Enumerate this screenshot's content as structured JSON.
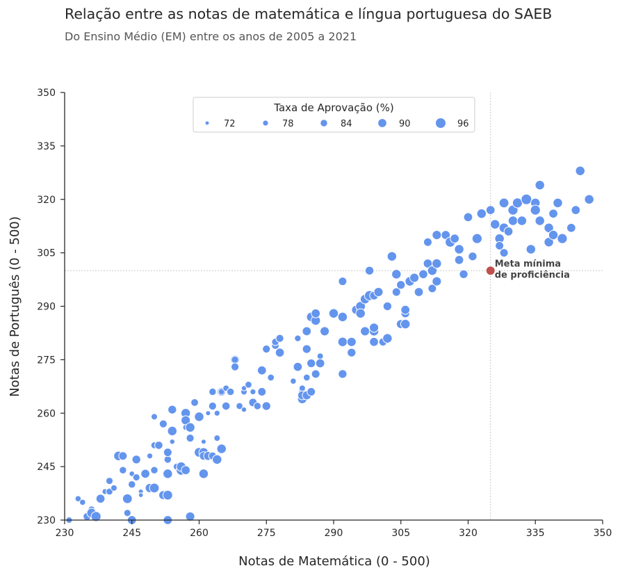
{
  "chart_data": {
    "type": "scatter",
    "title": "Relação entre as notas de matemática e língua portuguesa do SAEB",
    "subtitle": "Do Ensino Médio (EM) entre os anos de 2005 a 2021",
    "xlabel": "Notas de Matemática (0 - 500)",
    "ylabel": "Notas de Português (0 - 500)",
    "xlim": [
      230,
      350
    ],
    "ylim": [
      230,
      350
    ],
    "xticks": [
      230,
      245,
      260,
      275,
      290,
      305,
      320,
      335,
      350
    ],
    "yticks": [
      230,
      245,
      260,
      275,
      290,
      305,
      320,
      335,
      350
    ],
    "grid": false,
    "point_color": "#6495ed",
    "legend": {
      "title": "Taxa de Aprovação (%)",
      "placement": "top-center",
      "entries": [
        "72",
        "78",
        "84",
        "90",
        "96"
      ],
      "entry_values": [
        72,
        78,
        84,
        90,
        96
      ]
    },
    "reference_point": {
      "x": 325,
      "y": 300,
      "label_line1": "Meta mínima",
      "label_line2": "de proficiência",
      "color": "#c0504d"
    },
    "points": [
      [
        231,
        230,
        80
      ],
      [
        233,
        236,
        79
      ],
      [
        234,
        235,
        79
      ],
      [
        235,
        231,
        86
      ],
      [
        236,
        233,
        82
      ],
      [
        236,
        232,
        92
      ],
      [
        237,
        231,
        94
      ],
      [
        238,
        236,
        90
      ],
      [
        239,
        238,
        78
      ],
      [
        240,
        238,
        82
      ],
      [
        240,
        241,
        83
      ],
      [
        241,
        239,
        80
      ],
      [
        242,
        248,
        92
      ],
      [
        243,
        248,
        88
      ],
      [
        243,
        244,
        84
      ],
      [
        244,
        236,
        93
      ],
      [
        244,
        232,
        83
      ],
      [
        245,
        230,
        90
      ],
      [
        245,
        243,
        77
      ],
      [
        245,
        240,
        84
      ],
      [
        246,
        247,
        89
      ],
      [
        246,
        242,
        83
      ],
      [
        247,
        238,
        75
      ],
      [
        247,
        237,
        74
      ],
      [
        248,
        243,
        90
      ],
      [
        249,
        248,
        78
      ],
      [
        249,
        239,
        91
      ],
      [
        250,
        239,
        93
      ],
      [
        250,
        244,
        84
      ],
      [
        250,
        251,
        82
      ],
      [
        250,
        259,
        80
      ],
      [
        251,
        251,
        87
      ],
      [
        252,
        257,
        86
      ],
      [
        252,
        237,
        90
      ],
      [
        253,
        237,
        93
      ],
      [
        253,
        247,
        84
      ],
      [
        253,
        249,
        88
      ],
      [
        253,
        243,
        92
      ],
      [
        253,
        230,
        90
      ],
      [
        254,
        255,
        92
      ],
      [
        254,
        252,
        76
      ],
      [
        254,
        261,
        89
      ],
      [
        255,
        245,
        82
      ],
      [
        256,
        244,
        94
      ],
      [
        256,
        245,
        92
      ],
      [
        257,
        260,
        92
      ],
      [
        257,
        258,
        91
      ],
      [
        257,
        256,
        78
      ],
      [
        257,
        244,
        90
      ],
      [
        258,
        253,
        86
      ],
      [
        258,
        256,
        92
      ],
      [
        258,
        231,
        91
      ],
      [
        259,
        263,
        85
      ],
      [
        260,
        259,
        92
      ],
      [
        260,
        249,
        93
      ],
      [
        261,
        249,
        92
      ],
      [
        261,
        243,
        92
      ],
      [
        261,
        248,
        88
      ],
      [
        261,
        252,
        75
      ],
      [
        262,
        260,
        75
      ],
      [
        262,
        248,
        90
      ],
      [
        263,
        248,
        86
      ],
      [
        263,
        262,
        86
      ],
      [
        263,
        266,
        84
      ],
      [
        264,
        247,
        92
      ],
      [
        264,
        253,
        80
      ],
      [
        264,
        260,
        78
      ],
      [
        265,
        266,
        88
      ],
      [
        265,
        266,
        80
      ],
      [
        265,
        250,
        92
      ],
      [
        266,
        262,
        87
      ],
      [
        266,
        267,
        80
      ],
      [
        267,
        266,
        84
      ],
      [
        268,
        275,
        91
      ],
      [
        268,
        275,
        84
      ],
      [
        268,
        273,
        86
      ],
      [
        269,
        262,
        82
      ],
      [
        270,
        261,
        76
      ],
      [
        270,
        266,
        80
      ],
      [
        270,
        267,
        76
      ],
      [
        271,
        268,
        82
      ],
      [
        272,
        266,
        78
      ],
      [
        272,
        263,
        88
      ],
      [
        273,
        262,
        84
      ],
      [
        274,
        272,
        90
      ],
      [
        274,
        266,
        88
      ],
      [
        275,
        262,
        89
      ],
      [
        275,
        278,
        86
      ],
      [
        276,
        270,
        82
      ],
      [
        277,
        279,
        85
      ],
      [
        277,
        280,
        84
      ],
      [
        278,
        281,
        86
      ],
      [
        278,
        277,
        90
      ],
      [
        281,
        269,
        79
      ],
      [
        282,
        281,
        81
      ],
      [
        282,
        273,
        90
      ],
      [
        283,
        266,
        84
      ],
      [
        283,
        267,
        80
      ],
      [
        283,
        264,
        92
      ],
      [
        283,
        265,
        90
      ],
      [
        284,
        265,
        90
      ],
      [
        284,
        270,
        82
      ],
      [
        284,
        283,
        90
      ],
      [
        284,
        278,
        89
      ],
      [
        285,
        266,
        88
      ],
      [
        285,
        274,
        89
      ],
      [
        285,
        287,
        92
      ],
      [
        286,
        286,
        92
      ],
      [
        286,
        271,
        88
      ],
      [
        286,
        288,
        90
      ],
      [
        287,
        276,
        80
      ],
      [
        287,
        274,
        90
      ],
      [
        288,
        283,
        91
      ],
      [
        290,
        288,
        92
      ],
      [
        292,
        271,
        89
      ],
      [
        292,
        280,
        92
      ],
      [
        292,
        287,
        92
      ],
      [
        292,
        297,
        88
      ],
      [
        294,
        277,
        89
      ],
      [
        294,
        280,
        91
      ],
      [
        295,
        289,
        90
      ],
      [
        296,
        290,
        93
      ],
      [
        296,
        288,
        92
      ],
      [
        297,
        283,
        91
      ],
      [
        297,
        292,
        92
      ],
      [
        298,
        293,
        94
      ],
      [
        298,
        300,
        89
      ],
      [
        299,
        283,
        92
      ],
      [
        299,
        280,
        90
      ],
      [
        299,
        284,
        91
      ],
      [
        299,
        293,
        89
      ],
      [
        300,
        294,
        91
      ],
      [
        301,
        280,
        87
      ],
      [
        302,
        281,
        92
      ],
      [
        302,
        290,
        89
      ],
      [
        303,
        304,
        92
      ],
      [
        304,
        294,
        88
      ],
      [
        304,
        299,
        92
      ],
      [
        305,
        296,
        89
      ],
      [
        305,
        285,
        91
      ],
      [
        305,
        285,
        90
      ],
      [
        306,
        285,
        92
      ],
      [
        306,
        288,
        89
      ],
      [
        306,
        289,
        90
      ],
      [
        307,
        297,
        92
      ],
      [
        308,
        298,
        91
      ],
      [
        309,
        294,
        90
      ],
      [
        310,
        299,
        90
      ],
      [
        311,
        302,
        90
      ],
      [
        311,
        308,
        88
      ],
      [
        312,
        300,
        92
      ],
      [
        312,
        295,
        88
      ],
      [
        313,
        302,
        92
      ],
      [
        313,
        297,
        91
      ],
      [
        313,
        310,
        91
      ],
      [
        315,
        310,
        90
      ],
      [
        316,
        308,
        94
      ],
      [
        317,
        309,
        90
      ],
      [
        318,
        303,
        90
      ],
      [
        318,
        306,
        92
      ],
      [
        319,
        299,
        89
      ],
      [
        320,
        315,
        90
      ],
      [
        321,
        304,
        89
      ],
      [
        322,
        309,
        94
      ],
      [
        323,
        316,
        92
      ],
      [
        325,
        317,
        90
      ],
      [
        326,
        313,
        92
      ],
      [
        327,
        309,
        92
      ],
      [
        327,
        307,
        88
      ],
      [
        328,
        319,
        93
      ],
      [
        328,
        312,
        93
      ],
      [
        328,
        305,
        88
      ],
      [
        329,
        311,
        90
      ],
      [
        330,
        314,
        92
      ],
      [
        330,
        317,
        94
      ],
      [
        331,
        319,
        94
      ],
      [
        332,
        314,
        92
      ],
      [
        333,
        320,
        96
      ],
      [
        334,
        306,
        92
      ],
      [
        335,
        319,
        92
      ],
      [
        335,
        317,
        94
      ],
      [
        336,
        314,
        92
      ],
      [
        336,
        324,
        92
      ],
      [
        338,
        312,
        92
      ],
      [
        338,
        308,
        92
      ],
      [
        339,
        316,
        90
      ],
      [
        339,
        310,
        92
      ],
      [
        340,
        319,
        92
      ],
      [
        341,
        309,
        94
      ],
      [
        343,
        312,
        90
      ],
      [
        344,
        317,
        90
      ],
      [
        345,
        328,
        92
      ],
      [
        347,
        320,
        92
      ]
    ]
  }
}
